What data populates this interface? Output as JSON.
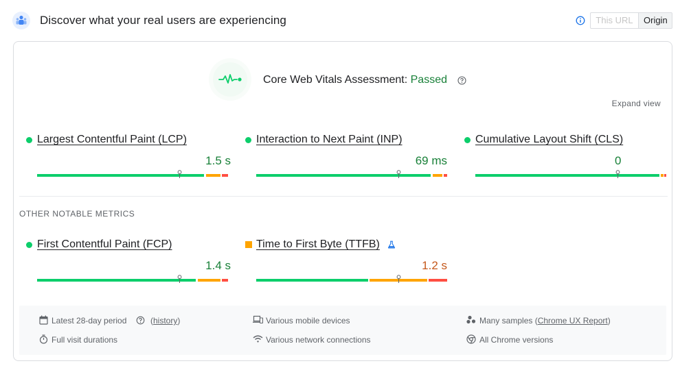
{
  "header": {
    "title": "Discover what your real users are experiencing",
    "toggle": {
      "this_url": "This URL",
      "origin": "Origin"
    }
  },
  "assessment": {
    "label": "Core Web Vitals Assessment:",
    "status": "Passed",
    "expand_label": "Expand view"
  },
  "core_metrics": [
    {
      "name": "Largest Contentful Paint (LCP)",
      "value": "1.5 s",
      "status": "good"
    },
    {
      "name": "Interaction to Next Paint (INP)",
      "value": "69 ms",
      "status": "good"
    },
    {
      "name": "Cumulative Layout Shift (CLS)",
      "value": "0",
      "status": "good"
    }
  ],
  "other_section": {
    "title": "OTHER NOTABLE METRICS"
  },
  "other_metrics": [
    {
      "name": "First Contentful Paint (FCP)",
      "value": "1.4 s",
      "status": "good"
    },
    {
      "name": "Time to First Byte (TTFB)",
      "value": "1.2 s",
      "status": "needs-improvement",
      "badge_icon": "flask-icon"
    }
  ],
  "footer": {
    "period": "Latest 28-day period",
    "history_link": "history",
    "visit": "Full visit durations",
    "devices": "Various mobile devices",
    "network": "Various network connections",
    "samples_prefix": "Many samples (",
    "samples_link": "Chrome UX Report",
    "samples_suffix": ")",
    "versions": "All Chrome versions"
  },
  "colors": {
    "good": "#0cce6b",
    "average": "#ffa400",
    "poor": "#ff4e42",
    "good_text": "#188038",
    "average_text": "#c5581b"
  }
}
